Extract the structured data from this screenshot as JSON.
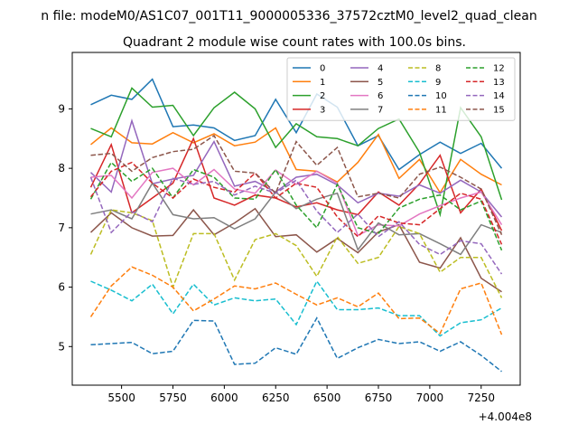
{
  "figure": {
    "suptitle": "n file: modeM0/AS1C07_001T11_9000005336_37572cztM0_level2_quad_clean"
  },
  "chart_data": {
    "type": "line",
    "title": "Quadrant 2 module wise count rates with 100.0s bins.",
    "xlabel": "",
    "ylabel": "",
    "x_offset_label": "+4.004e8",
    "x": [
      5350,
      5450,
      5550,
      5650,
      5750,
      5850,
      5950,
      6050,
      6150,
      6250,
      6350,
      6450,
      6550,
      6650,
      6750,
      6850,
      6950,
      7050,
      7150,
      7250,
      7350
    ],
    "xlim": [
      5260,
      7440
    ],
    "ylim": [
      4.35,
      9.95
    ],
    "x_ticks": [
      5500,
      5750,
      6000,
      6250,
      6500,
      6750,
      7000,
      7250
    ],
    "x_tick_labels": [
      "5500",
      "5750",
      "6000",
      "6250",
      "6500",
      "6750",
      "7000",
      "7250"
    ],
    "y_ticks": [
      5,
      6,
      7,
      8,
      9
    ],
    "y_tick_labels": [
      "5",
      "6",
      "7",
      "8",
      "9"
    ],
    "grid": false,
    "legend_location": "upper right",
    "legend_columns": 4,
    "series": [
      {
        "name": "0",
        "color": "#1f77b4",
        "dashed": false,
        "values": [
          9.07,
          9.23,
          9.16,
          9.5,
          8.7,
          8.73,
          8.68,
          8.47,
          8.55,
          9.16,
          8.6,
          9.25,
          9.03,
          8.38,
          8.55,
          7.98,
          8.23,
          8.44,
          8.25,
          8.42,
          8.0
        ]
      },
      {
        "name": "1",
        "color": "#ff7f0e",
        "dashed": false,
        "values": [
          8.4,
          8.68,
          8.43,
          8.41,
          8.6,
          8.43,
          8.58,
          8.38,
          8.44,
          8.68,
          7.98,
          7.95,
          7.77,
          8.1,
          8.57,
          7.83,
          8.15,
          7.59,
          8.15,
          7.9,
          7.72
        ]
      },
      {
        "name": "2",
        "color": "#2ca02c",
        "dashed": false,
        "values": [
          8.67,
          8.53,
          9.35,
          9.03,
          9.06,
          8.55,
          9.02,
          9.28,
          9.0,
          8.35,
          8.75,
          8.53,
          8.5,
          8.38,
          8.67,
          8.83,
          8.27,
          7.22,
          9.02,
          8.53,
          7.47
        ]
      },
      {
        "name": "3",
        "color": "#d62728",
        "dashed": false,
        "values": [
          7.68,
          8.4,
          7.25,
          7.5,
          7.75,
          8.5,
          7.5,
          7.38,
          7.55,
          7.5,
          7.35,
          7.42,
          7.3,
          7.22,
          7.6,
          7.38,
          7.74,
          8.22,
          7.25,
          7.65,
          6.95
        ]
      },
      {
        "name": "4",
        "color": "#9467bd",
        "dashed": false,
        "values": [
          7.93,
          7.6,
          8.8,
          7.74,
          7.82,
          7.88,
          8.45,
          7.7,
          7.78,
          7.6,
          7.85,
          7.9,
          7.72,
          7.42,
          7.58,
          7.53,
          7.72,
          7.58,
          7.8,
          7.6,
          7.18
        ]
      },
      {
        "name": "5",
        "color": "#8c564b",
        "dashed": false,
        "values": [
          6.92,
          7.25,
          7.0,
          6.86,
          6.87,
          7.3,
          6.88,
          7.08,
          7.32,
          6.85,
          6.88,
          6.59,
          6.82,
          6.58,
          6.93,
          7.05,
          6.42,
          6.32,
          6.83,
          6.15,
          5.92
        ]
      },
      {
        "name": "6",
        "color": "#e377c2",
        "dashed": false,
        "values": [
          7.85,
          7.88,
          7.5,
          7.93,
          8.0,
          7.72,
          7.98,
          7.65,
          7.58,
          7.97,
          7.73,
          7.95,
          7.75,
          6.87,
          7.05,
          7.03,
          7.23,
          7.37,
          7.5,
          7.6,
          7.05
        ]
      },
      {
        "name": "7",
        "color": "#7f7f7f",
        "dashed": false,
        "values": [
          7.23,
          7.3,
          7.15,
          7.75,
          7.22,
          7.15,
          7.17,
          6.98,
          7.15,
          7.6,
          7.32,
          7.48,
          7.58,
          6.63,
          7.08,
          6.88,
          6.9,
          6.73,
          6.55,
          7.05,
          6.92
        ]
      },
      {
        "name": "8",
        "color": "#bcbd22",
        "dashed": true,
        "values": [
          6.55,
          7.3,
          7.25,
          7.12,
          6.0,
          6.9,
          6.9,
          6.12,
          6.8,
          6.9,
          6.7,
          6.18,
          6.85,
          6.4,
          6.5,
          7.02,
          6.9,
          6.25,
          6.5,
          6.5,
          5.82
        ]
      },
      {
        "name": "9",
        "color": "#17becf",
        "dashed": true,
        "values": [
          6.1,
          5.95,
          5.77,
          6.05,
          5.55,
          6.05,
          5.7,
          5.82,
          5.77,
          5.8,
          5.37,
          6.1,
          5.62,
          5.62,
          5.65,
          5.52,
          5.52,
          5.18,
          5.4,
          5.45,
          5.65
        ]
      },
      {
        "name": "10",
        "color": "#1f77b4",
        "dashed": true,
        "values": [
          5.03,
          5.05,
          5.07,
          4.88,
          4.92,
          5.44,
          5.43,
          4.7,
          4.72,
          4.98,
          4.87,
          5.48,
          4.8,
          4.98,
          5.12,
          5.05,
          5.08,
          4.92,
          5.08,
          4.85,
          4.58
        ]
      },
      {
        "name": "11",
        "color": "#ff7f0e",
        "dashed": true,
        "values": [
          5.5,
          6.02,
          6.34,
          6.2,
          6.0,
          5.6,
          5.8,
          6.02,
          5.97,
          6.07,
          5.88,
          5.7,
          5.82,
          5.67,
          5.9,
          5.47,
          5.48,
          5.22,
          5.97,
          6.07,
          5.2
        ]
      },
      {
        "name": "12",
        "color": "#2ca02c",
        "dashed": true,
        "values": [
          7.48,
          8.1,
          7.78,
          8.0,
          7.5,
          7.98,
          7.85,
          7.5,
          7.48,
          7.98,
          7.38,
          7.0,
          7.73,
          7.0,
          6.9,
          7.33,
          7.48,
          7.55,
          7.3,
          7.45,
          6.62
        ]
      },
      {
        "name": "13",
        "color": "#d62728",
        "dashed": true,
        "values": [
          7.52,
          7.95,
          8.1,
          7.75,
          7.5,
          7.82,
          7.68,
          7.6,
          7.92,
          7.5,
          7.75,
          7.68,
          7.18,
          6.85,
          7.2,
          7.08,
          7.05,
          7.32,
          7.58,
          7.48,
          6.72
        ]
      },
      {
        "name": "14",
        "color": "#9467bd",
        "dashed": true,
        "values": [
          7.85,
          6.92,
          7.27,
          7.1,
          7.83,
          7.73,
          7.78,
          7.55,
          7.7,
          7.58,
          7.8,
          7.28,
          6.92,
          7.23,
          6.85,
          7.1,
          6.72,
          6.55,
          6.78,
          6.73,
          6.22
        ]
      },
      {
        "name": "15",
        "color": "#8c564b",
        "dashed": true,
        "values": [
          8.22,
          8.25,
          7.95,
          8.18,
          8.28,
          8.32,
          8.55,
          7.95,
          7.92,
          7.58,
          8.45,
          8.05,
          8.35,
          7.52,
          7.58,
          7.5,
          7.9,
          8.02,
          7.85,
          7.65,
          6.88
        ]
      }
    ]
  }
}
